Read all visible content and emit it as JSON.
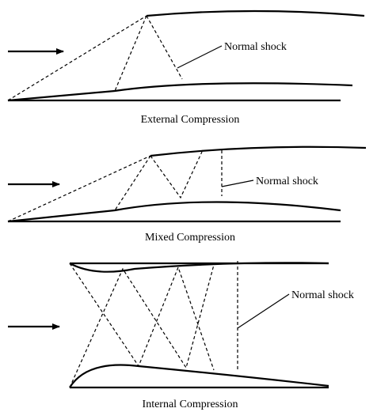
{
  "panels": [
    {
      "caption": "External Compression",
      "label": "Normal shock"
    },
    {
      "caption": "Mixed Compression",
      "label": "Normal shock"
    },
    {
      "caption": "Internal Compression",
      "label": "Normal shock"
    }
  ]
}
